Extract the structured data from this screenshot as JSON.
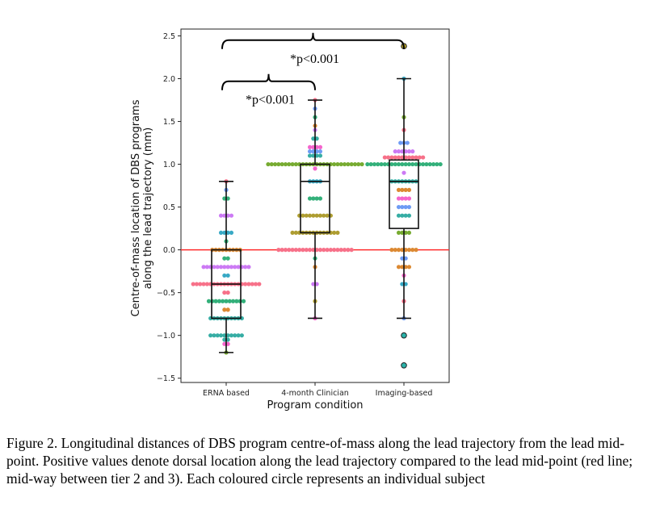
{
  "chart_data": {
    "type": "box-swarm",
    "xlabel": "Program condition",
    "ylabel": "Centre-of-mass location of DBS programs along the lead trajectory (mm)",
    "ylabel_lines": [
      "Centre-of-mass location of DBS programs",
      "along the lead trajectory (mm)"
    ],
    "ylim": [
      -1.55,
      2.58
    ],
    "yticks": [
      -1.5,
      -1.0,
      -0.5,
      0.0,
      0.5,
      1.0,
      1.5,
      2.0,
      2.5
    ],
    "yticklabels": [
      "−1.5",
      "−1.0",
      "−0.5",
      "0.0",
      "0.5",
      "1.0",
      "1.5",
      "2.0",
      "2.5"
    ],
    "categories": [
      "ERNA based",
      "4-month Clinician",
      "Imaging-based"
    ],
    "reference_line": {
      "y": 0.0,
      "color": "#ff2a2a"
    },
    "boxes": [
      {
        "q1": -0.8,
        "median": -0.4,
        "q3": 0.0,
        "whisker_low": -1.2,
        "whisker_high": 0.8
      },
      {
        "q1": 0.2,
        "median": 0.8,
        "q3": 1.0,
        "whisker_low": -0.8,
        "whisker_high": 1.75
      },
      {
        "q1": 0.25,
        "median": 0.8,
        "q3": 1.05,
        "whisker_low": -0.8,
        "whisker_high": 2.0
      }
    ],
    "outliers": [
      {
        "category": 2,
        "y": 2.38,
        "color": "#b8a52c"
      },
      {
        "category": 2,
        "y": -1.0,
        "color": "#2bb2a9"
      },
      {
        "category": 2,
        "y": -1.35,
        "color": "#2bb2a9"
      }
    ],
    "swarm": [
      {
        "category": 0,
        "levels": [
          {
            "y": 0.8,
            "n": 1
          },
          {
            "y": 0.7,
            "n": 1
          },
          {
            "y": 0.6,
            "n": 2
          },
          {
            "y": 0.4,
            "n": 4
          },
          {
            "y": 0.2,
            "n": 4
          },
          {
            "y": 0.1,
            "n": 1
          },
          {
            "y": 0.0,
            "n": 9
          },
          {
            "y": -0.1,
            "n": 2
          },
          {
            "y": -0.2,
            "n": 14
          },
          {
            "y": -0.3,
            "n": 2
          },
          {
            "y": -0.4,
            "n": 20
          },
          {
            "y": -0.5,
            "n": 2
          },
          {
            "y": -0.6,
            "n": 11
          },
          {
            "y": -0.7,
            "n": 2
          },
          {
            "y": -0.8,
            "n": 10
          },
          {
            "y": -1.0,
            "n": 10
          },
          {
            "y": -1.05,
            "n": 2
          },
          {
            "y": -1.1,
            "n": 2
          },
          {
            "y": -1.2,
            "n": 1
          }
        ]
      },
      {
        "category": 1,
        "levels": [
          {
            "y": 1.75,
            "n": 1
          },
          {
            "y": 1.65,
            "n": 1
          },
          {
            "y": 1.55,
            "n": 1
          },
          {
            "y": 1.45,
            "n": 1
          },
          {
            "y": 1.4,
            "n": 1
          },
          {
            "y": 1.3,
            "n": 2
          },
          {
            "y": 1.2,
            "n": 4
          },
          {
            "y": 1.15,
            "n": 4
          },
          {
            "y": 1.1,
            "n": 4
          },
          {
            "y": 1.0,
            "n": 28
          },
          {
            "y": 0.95,
            "n": 1
          },
          {
            "y": 0.8,
            "n": 4
          },
          {
            "y": 0.6,
            "n": 4
          },
          {
            "y": 0.4,
            "n": 10
          },
          {
            "y": 0.2,
            "n": 14
          },
          {
            "y": 0.0,
            "n": 22
          },
          {
            "y": -0.1,
            "n": 1
          },
          {
            "y": -0.2,
            "n": 1
          },
          {
            "y": -0.4,
            "n": 2
          },
          {
            "y": -0.6,
            "n": 1
          },
          {
            "y": -0.8,
            "n": 1
          }
        ]
      },
      {
        "category": 2,
        "levels": [
          {
            "y": 2.0,
            "n": 1
          },
          {
            "y": 1.55,
            "n": 1
          },
          {
            "y": 1.4,
            "n": 1
          },
          {
            "y": 1.25,
            "n": 3
          },
          {
            "y": 1.15,
            "n": 6
          },
          {
            "y": 1.08,
            "n": 12
          },
          {
            "y": 1.0,
            "n": 22
          },
          {
            "y": 0.9,
            "n": 1
          },
          {
            "y": 0.8,
            "n": 8
          },
          {
            "y": 0.7,
            "n": 4
          },
          {
            "y": 0.6,
            "n": 4
          },
          {
            "y": 0.5,
            "n": 4
          },
          {
            "y": 0.4,
            "n": 4
          },
          {
            "y": 0.2,
            "n": 4
          },
          {
            "y": 0.0,
            "n": 8
          },
          {
            "y": -0.1,
            "n": 2
          },
          {
            "y": -0.2,
            "n": 4
          },
          {
            "y": -0.3,
            "n": 1
          },
          {
            "y": -0.4,
            "n": 2
          },
          {
            "y": -0.6,
            "n": 1
          },
          {
            "y": -0.8,
            "n": 1
          }
        ]
      }
    ],
    "point_palette": [
      "#f77189",
      "#dc8932",
      "#ae9d31",
      "#77ab31",
      "#33b07a",
      "#36ada4",
      "#38a9c5",
      "#6e9bf4",
      "#cc7af4",
      "#f565cc"
    ],
    "annotations": [
      {
        "text": "*p<0.001",
        "from_category": 0,
        "to_category": 2,
        "y": 2.45
      },
      {
        "text": "*p<0.001",
        "from_category": 0,
        "to_category": 1,
        "y": 1.97
      }
    ]
  },
  "caption": "Figure 2. Longitudinal distances of DBS program centre-of-mass along the lead trajectory from the lead mid-point. Positive values denote dorsal location along the lead trajectory compared to the lead mid-point (red line; mid-way between tier 2 and 3). Each coloured circle represents an individual subject"
}
